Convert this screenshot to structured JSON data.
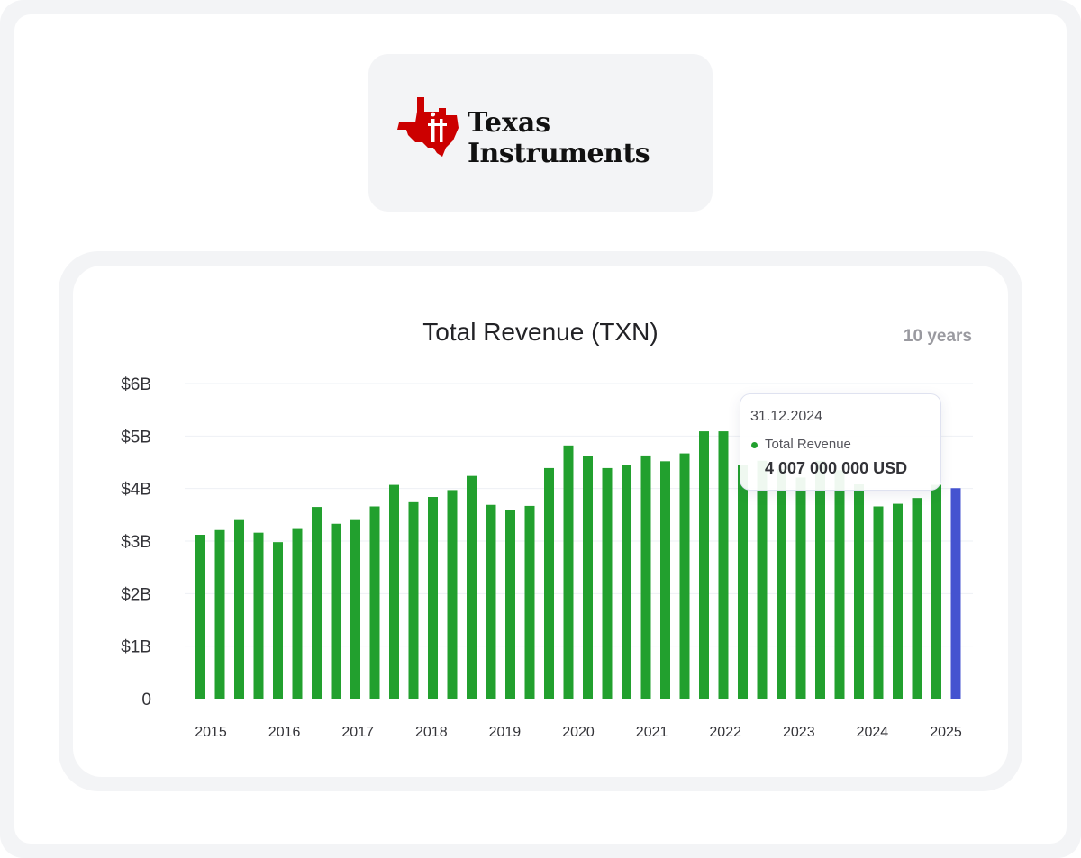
{
  "logo": {
    "line1": "Texas",
    "line2": "Instruments",
    "brand_color": "#cc0000"
  },
  "chart_header": {
    "title": "Total Revenue (TXN)",
    "range": "10 years"
  },
  "tooltip": {
    "date": "31.12.2024",
    "series": "Total Revenue",
    "value": "4 007 000 000 USD"
  },
  "colors": {
    "bar": "#22a02e",
    "highlight": "#4453d0",
    "grid": "#eef0f4"
  },
  "chart_data": {
    "type": "bar",
    "title": "Total Revenue (TXN)",
    "xlabel": "",
    "ylabel": "",
    "ylim": [
      0,
      6000000000
    ],
    "y_ticks": [
      "0",
      "$1B",
      "$2B",
      "$3B",
      "$4B",
      "$5B",
      "$6B"
    ],
    "x_ticks": [
      "2015",
      "2016",
      "2017",
      "2018",
      "2019",
      "2020",
      "2021",
      "2022",
      "2023",
      "2024",
      "2025"
    ],
    "grid": true,
    "series": [
      {
        "name": "Total Revenue",
        "values": [
          3120000000,
          3210000000,
          3400000000,
          3160000000,
          2980000000,
          3230000000,
          3650000000,
          3330000000,
          3400000000,
          3660000000,
          4070000000,
          3740000000,
          3840000000,
          3970000000,
          4240000000,
          3690000000,
          3590000000,
          3670000000,
          4390000000,
          4820000000,
          4620000000,
          4390000000,
          4440000000,
          4630000000,
          4520000000,
          4670000000,
          5090000000,
          5090000000,
          4450000000,
          4530000000,
          4370000000,
          4210000000,
          4530000000,
          4350000000,
          4080000000,
          3660000000,
          3710000000,
          3820000000,
          4070000000,
          4007000000
        ]
      }
    ],
    "highlight_index": 39
  }
}
